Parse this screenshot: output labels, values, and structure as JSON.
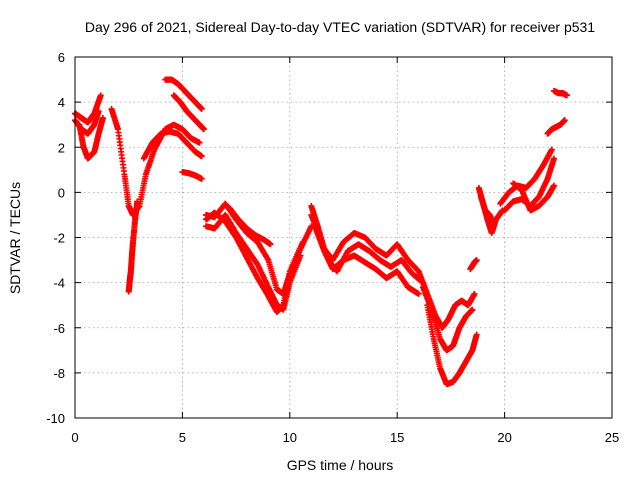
{
  "chart_data": {
    "type": "scatter",
    "title": "Day 296 of 2021, Sidereal Day-to-day VTEC variation (SDTVAR) for receiver p531",
    "xlabel": "GPS time / hours",
    "ylabel": "SDTVAR / TECUs",
    "xlim": [
      0,
      25
    ],
    "ylim": [
      -10,
      6
    ],
    "xticks": [
      0,
      5,
      10,
      15,
      20,
      25
    ],
    "yticks": [
      -10,
      -8,
      -6,
      -4,
      -2,
      0,
      2,
      4,
      6
    ],
    "grid": true,
    "marker": "plus",
    "marker_color": "#ff0000",
    "series": [
      {
        "x": [
          0.0,
          0.3,
          0.6,
          0.9,
          1.2
        ],
        "y": [
          3.5,
          3.3,
          3.1,
          3.5,
          4.3
        ]
      },
      {
        "x": [
          0.0,
          0.3,
          0.6,
          0.9,
          1.1
        ],
        "y": [
          3.2,
          2.8,
          2.6,
          3.0,
          3.6
        ]
      },
      {
        "x": [
          0.2,
          0.4,
          0.6,
          0.9,
          1.1,
          1.3
        ],
        "y": [
          3.0,
          2.0,
          1.5,
          1.8,
          2.6,
          3.3
        ]
      },
      {
        "x": [
          1.7,
          2.0,
          2.3,
          2.5,
          2.7,
          3.0,
          3.3,
          3.7,
          4.2,
          4.6,
          5.0,
          5.4,
          5.8
        ],
        "y": [
          3.7,
          2.8,
          0.8,
          -0.6,
          -1.0,
          -0.6,
          0.8,
          1.9,
          2.8,
          3.0,
          2.8,
          2.4,
          2.2
        ]
      },
      {
        "x": [
          2.5,
          2.55,
          2.6,
          2.65,
          2.7,
          2.8,
          2.9
        ],
        "y": [
          -4.4,
          -3.9,
          -3.5,
          -2.8,
          -2.2,
          -1.2,
          -0.4
        ]
      },
      {
        "x": [
          3.2,
          3.6,
          4.0,
          4.4,
          4.8,
          5.2,
          5.6,
          5.9
        ],
        "y": [
          1.5,
          2.2,
          2.6,
          2.7,
          2.6,
          2.2,
          1.8,
          1.6
        ]
      },
      {
        "x": [
          4.2,
          4.5,
          4.8,
          5.1,
          5.4,
          5.7,
          5.9
        ],
        "y": [
          5.0,
          5.0,
          4.8,
          4.5,
          4.2,
          3.9,
          3.7
        ]
      },
      {
        "x": [
          4.6,
          4.9,
          5.2,
          5.5,
          5.8,
          6.0
        ],
        "y": [
          4.3,
          4.0,
          3.6,
          3.3,
          3.0,
          2.8
        ]
      },
      {
        "x": [
          5.0,
          5.3,
          5.6,
          5.9
        ],
        "y": [
          0.9,
          0.85,
          0.75,
          0.6
        ]
      },
      {
        "x": [
          6.1,
          6.5,
          7.0,
          7.5,
          8.0,
          8.5,
          9.0,
          9.4,
          9.7,
          10.0,
          10.5,
          11.0
        ],
        "y": [
          -1.0,
          -1.1,
          -0.5,
          -1.2,
          -1.8,
          -2.2,
          -3.0,
          -4.3,
          -4.5,
          -3.6,
          -2.5,
          -1.5
        ]
      },
      {
        "x": [
          6.1,
          6.5,
          7.0,
          7.5,
          8.0,
          8.5,
          9.0,
          9.4,
          9.7,
          10.0,
          10.5
        ],
        "y": [
          -1.5,
          -1.6,
          -1.0,
          -1.8,
          -2.5,
          -3.2,
          -4.2,
          -5.0,
          -5.2,
          -4.0,
          -2.8
        ]
      },
      {
        "x": [
          6.1,
          6.5,
          7.0,
          7.5,
          8.0,
          8.5,
          9.0,
          9.4,
          9.7,
          10.0,
          10.6
        ],
        "y": [
          -1.2,
          -0.9,
          -1.3,
          -2.0,
          -2.9,
          -3.8,
          -4.6,
          -5.3,
          -5.0,
          -3.5,
          -2.2
        ]
      },
      {
        "x": [
          7.2,
          7.6,
          8.0,
          8.4,
          8.8,
          9.1
        ],
        "y": [
          -0.7,
          -1.2,
          -1.6,
          -1.9,
          -2.1,
          -2.3
        ]
      },
      {
        "x": [
          11.0,
          11.3,
          11.6,
          12.0,
          12.5,
          13.0,
          13.5,
          14.0,
          14.5,
          15.0,
          15.5,
          16.0
        ],
        "y": [
          -0.6,
          -1.5,
          -2.5,
          -3.0,
          -2.2,
          -1.8,
          -2.0,
          -2.5,
          -2.8,
          -2.3,
          -3.0,
          -3.5
        ]
      },
      {
        "x": [
          11.0,
          11.4,
          11.8,
          12.2,
          12.7,
          13.2,
          13.7,
          14.2,
          14.7,
          15.2,
          15.7,
          16.2
        ],
        "y": [
          -1.0,
          -2.0,
          -3.0,
          -3.5,
          -2.6,
          -2.3,
          -2.6,
          -3.0,
          -3.3,
          -3.0,
          -3.6,
          -4.0
        ]
      },
      {
        "x": [
          11.2,
          11.6,
          12.0,
          12.5,
          13.0,
          13.5,
          14.0,
          14.5,
          15.0,
          15.5,
          16.0
        ],
        "y": [
          -1.6,
          -2.6,
          -3.4,
          -3.0,
          -2.8,
          -3.1,
          -3.4,
          -3.8,
          -3.5,
          -4.2,
          -4.5
        ]
      },
      {
        "x": [
          16.0,
          16.4,
          16.8,
          17.1,
          17.4,
          17.7,
          18.0,
          18.3,
          18.6
        ],
        "y": [
          -3.5,
          -4.5,
          -5.5,
          -6.0,
          -5.6,
          -5.0,
          -4.8,
          -5.0,
          -4.5
        ]
      },
      {
        "x": [
          16.2,
          16.6,
          17.0,
          17.3,
          17.6,
          17.9,
          18.2,
          18.5
        ],
        "y": [
          -4.2,
          -5.2,
          -6.5,
          -7.0,
          -6.8,
          -6.0,
          -5.5,
          -5.2
        ]
      },
      {
        "x": [
          16.4,
          16.7,
          17.0,
          17.3,
          17.6,
          17.9,
          18.2,
          18.5,
          18.7
        ],
        "y": [
          -5.0,
          -6.5,
          -7.8,
          -8.5,
          -8.4,
          -8.0,
          -7.5,
          -7.0,
          -6.3
        ]
      },
      {
        "x": [
          18.4,
          18.6,
          18.7
        ],
        "y": [
          -3.4,
          -3.1,
          -3.0
        ]
      },
      {
        "x": [
          18.8,
          19.0,
          19.2,
          19.4,
          19.6,
          19.9
        ],
        "y": [
          0.2,
          -0.5,
          -1.2,
          -1.8,
          -1.2,
          -0.8
        ]
      },
      {
        "x": [
          18.9,
          19.1,
          19.3,
          19.5
        ],
        "y": [
          -0.2,
          -0.8,
          -1.0,
          -1.4
        ]
      },
      {
        "x": [
          19.8,
          20.2,
          20.6,
          21.0,
          21.4,
          21.8,
          22.2
        ],
        "y": [
          -0.5,
          0.0,
          0.3,
          0.2,
          0.6,
          1.2,
          1.9
        ]
      },
      {
        "x": [
          20.0,
          20.4,
          20.8,
          21.2,
          21.6,
          22.0,
          22.3
        ],
        "y": [
          -0.8,
          -0.4,
          -0.3,
          -0.6,
          -0.2,
          0.6,
          1.5
        ]
      },
      {
        "x": [
          20.4,
          20.8,
          21.2,
          21.6,
          22.0,
          22.3
        ],
        "y": [
          0.4,
          0.1,
          -0.8,
          -0.6,
          -0.2,
          0.3
        ]
      },
      {
        "x": [
          22.0,
          22.2,
          22.4,
          22.6,
          22.8
        ],
        "y": [
          2.6,
          2.8,
          2.9,
          3.0,
          3.2
        ]
      },
      {
        "x": [
          22.3,
          22.5,
          22.7,
          22.9
        ],
        "y": [
          4.5,
          4.4,
          4.4,
          4.3
        ]
      }
    ]
  }
}
